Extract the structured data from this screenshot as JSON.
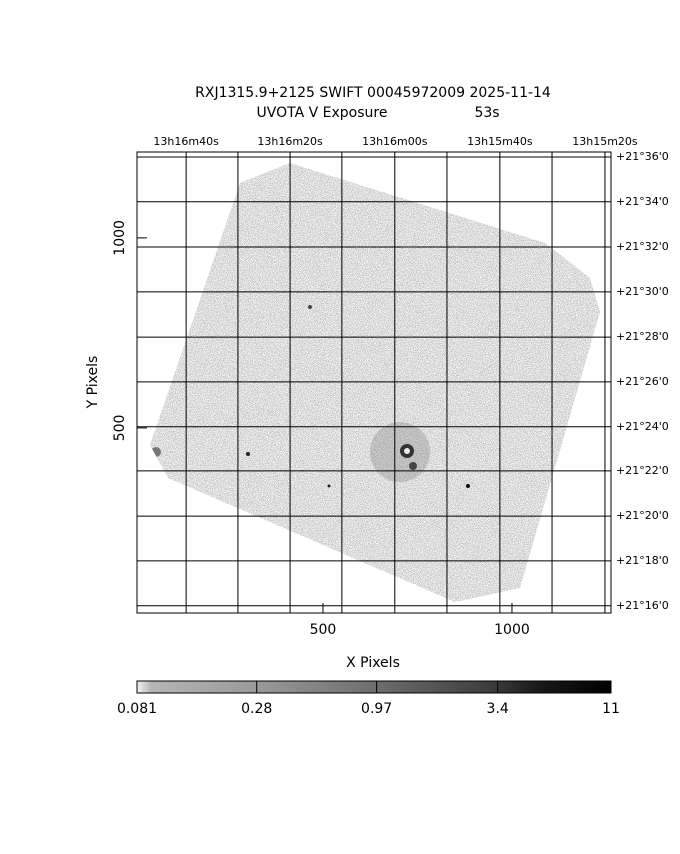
{
  "chart_data": {
    "type": "image",
    "title": "RXJ1315.9+2125 SWIFT 00045972009 2025-11-14",
    "subtitle": "UVOTA V Exposure",
    "exposure": "53s",
    "xlabel": "X Pixels",
    "ylabel": "Y Pixels",
    "xlim": [
      8,
      1262
    ],
    "ylim": [
      13,
      1226
    ],
    "xticks": [
      500,
      1000
    ],
    "yticks": [
      500,
      1000
    ],
    "grid": true,
    "top_ticks": [
      {
        "value": 138,
        "label": "13h16m40s"
      },
      {
        "value": 413,
        "label": "13h16m20s"
      },
      {
        "value": 690,
        "label": "13h16m00s"
      },
      {
        "value": 968,
        "label": "13h15m40s"
      },
      {
        "value": 1246,
        "label": "13h15m20s"
      }
    ],
    "top_grid": [
      275,
      550,
      828,
      1106
    ],
    "right_ticks": [
      {
        "value": 1213,
        "label": "+21°36'0"
      },
      {
        "value": 1095,
        "label": "+21°34'0"
      },
      {
        "value": 976,
        "label": "+21°32'0"
      },
      {
        "value": 858,
        "label": "+21°30'0"
      },
      {
        "value": 739,
        "label": "+21°28'0"
      },
      {
        "value": 621,
        "label": "+21°26'0"
      },
      {
        "value": 503,
        "label": "+21°24'0"
      },
      {
        "value": 387,
        "label": "+21°22'0"
      },
      {
        "value": 268,
        "label": "+21°20'0"
      },
      {
        "value": 150,
        "label": "+21°18'0"
      },
      {
        "value": 32,
        "label": "+21°16'0"
      }
    ],
    "colorbar": {
      "lim": [
        0.081,
        11
      ],
      "ticks": [
        0.081,
        0.28,
        0.97,
        3.4,
        11
      ],
      "scale": "log"
    }
  }
}
